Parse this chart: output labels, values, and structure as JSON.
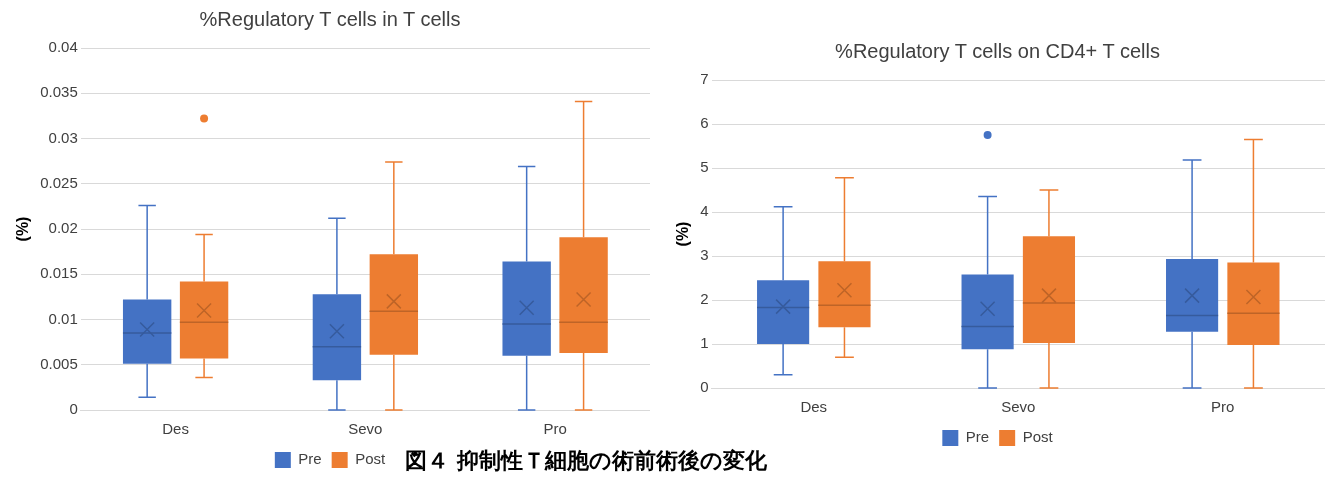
{
  "chart_data": [
    {
      "type": "box",
      "title": "%Regulatory T cells in T cells",
      "ylabel": "(%)",
      "categories": [
        "Des",
        "Sevo",
        "Pro"
      ],
      "ylim": [
        0,
        0.04
      ],
      "yticks": [
        0,
        0.005,
        0.01,
        0.015,
        0.02,
        0.025,
        0.03,
        0.035,
        0.04
      ],
      "grid": "y",
      "legend": "bottom",
      "annotations": [
        "図４ 抑制性Ｔ細胞の術前術後の変化"
      ],
      "series": [
        {
          "name": "Pre",
          "color": "#4472c4",
          "boxes": [
            {
              "low": 0.0014,
              "q1": 0.0051,
              "median": 0.0085,
              "q3": 0.0122,
              "high": 0.0226,
              "mean": 0.0089
            },
            {
              "low": 0,
              "q1": 0.0033,
              "median": 0.007,
              "q3": 0.0128,
              "high": 0.0212,
              "mean": 0.0087
            },
            {
              "low": 0,
              "q1": 0.006,
              "median": 0.0095,
              "q3": 0.0164,
              "high": 0.0269,
              "mean": 0.0113
            }
          ]
        },
        {
          "name": "Post",
          "color": "#ed7d31",
          "boxes": [
            {
              "low": 0.0036,
              "q1": 0.0057,
              "median": 0.0097,
              "q3": 0.0142,
              "high": 0.0194,
              "mean": 0.011,
              "outliers": [
                0.0322
              ]
            },
            {
              "low": 0,
              "q1": 0.0061,
              "median": 0.0109,
              "q3": 0.0172,
              "high": 0.0274,
              "mean": 0.012
            },
            {
              "low": 0,
              "q1": 0.0063,
              "median": 0.0097,
              "q3": 0.0191,
              "high": 0.0341,
              "mean": 0.0122
            }
          ]
        }
      ]
    },
    {
      "type": "box",
      "title": "%Regulatory T cells on CD4+ T cells",
      "ylabel": "(%)",
      "categories": [
        "Des",
        "Sevo",
        "Pro"
      ],
      "ylim": [
        0,
        7
      ],
      "yticks": [
        0,
        1,
        2,
        3,
        4,
        5,
        6,
        7
      ],
      "grid": "y",
      "legend": "bottom",
      "series": [
        {
          "name": "Pre",
          "color": "#4472c4",
          "boxes": [
            {
              "low": 0.3,
              "q1": 1.0,
              "median": 1.83,
              "q3": 2.45,
              "high": 4.12,
              "mean": 1.85
            },
            {
              "low": 0,
              "q1": 0.88,
              "median": 1.4,
              "q3": 2.58,
              "high": 4.35,
              "mean": 1.8,
              "outliers": [
                5.75
              ]
            },
            {
              "low": 0,
              "q1": 1.28,
              "median": 1.65,
              "q3": 2.93,
              "high": 5.18,
              "mean": 2.1
            }
          ]
        },
        {
          "name": "Post",
          "color": "#ed7d31",
          "boxes": [
            {
              "low": 0.7,
              "q1": 1.38,
              "median": 1.88,
              "q3": 2.88,
              "high": 4.78,
              "mean": 2.22
            },
            {
              "low": 0,
              "q1": 1.02,
              "median": 1.93,
              "q3": 3.45,
              "high": 4.5,
              "mean": 2.1
            },
            {
              "low": 0,
              "q1": 0.98,
              "median": 1.7,
              "q3": 2.85,
              "high": 5.65,
              "mean": 2.07
            }
          ]
        }
      ]
    }
  ]
}
